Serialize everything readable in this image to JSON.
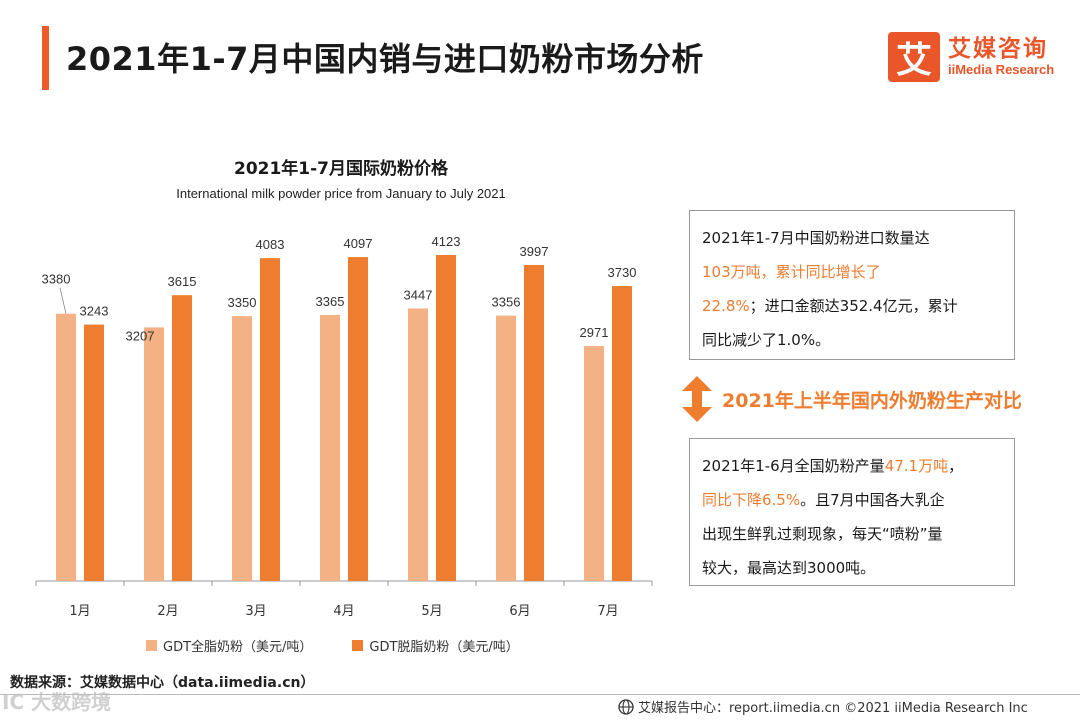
{
  "header": {
    "title": "2021年1-7月中国内销与进口奶粉市场分析",
    "logo_mark": "艾",
    "logo_cn": "艾媒咨询",
    "logo_en": "iiMedia Research"
  },
  "chart_data": {
    "type": "bar",
    "title": "2021年1-7月国际奶粉价格",
    "subtitle": "International milk powder price from January to July 2021",
    "categories": [
      "1月",
      "2月",
      "3月",
      "4月",
      "5月",
      "6月",
      "7月"
    ],
    "series": [
      {
        "name": "GDT全脂奶粉（美元/吨）",
        "color": "#f4b183",
        "values": [
          3380,
          3207,
          3350,
          3365,
          3447,
          3356,
          2971
        ]
      },
      {
        "name": "GDT脱脂奶粉（美元/吨）",
        "color": "#ee7d30",
        "values": [
          3243,
          3615,
          4083,
          4097,
          4123,
          3997,
          3730
        ]
      }
    ],
    "ylim": [
      0,
      4600
    ],
    "xlabel": "",
    "ylabel": "",
    "legend": "bottom"
  },
  "box1": {
    "line1": "2021年1-7月中国奶粉进口数量达",
    "hl1": "103万吨，累计同比增长了",
    "hl2": "22.8%",
    "line3rest": "；进口金额达352.4亿元，累计",
    "line4": "同比减少了1.0%。"
  },
  "middle": {
    "text": "2021年上半年国内外奶粉生产对比"
  },
  "box2": {
    "pre1": "2021年1-6月全国奶粉产量",
    "hl1": "47.1万吨",
    "post1": "，",
    "hl2": "同比下降6.5%",
    "post2": "。且7月中国各大乳企",
    "line3": "出现生鲜乳过剩现象，每天“喷粉”量",
    "line4": "较大，最高达到3000吨。"
  },
  "footer": {
    "source": "数据来源：艾媒数据中心（data.iimedia.cn）",
    "right": "艾媒报告中心：report.iimedia.cn  ©2021  iiMedia Research  Inc",
    "watermark": "IC 大数跨境"
  }
}
